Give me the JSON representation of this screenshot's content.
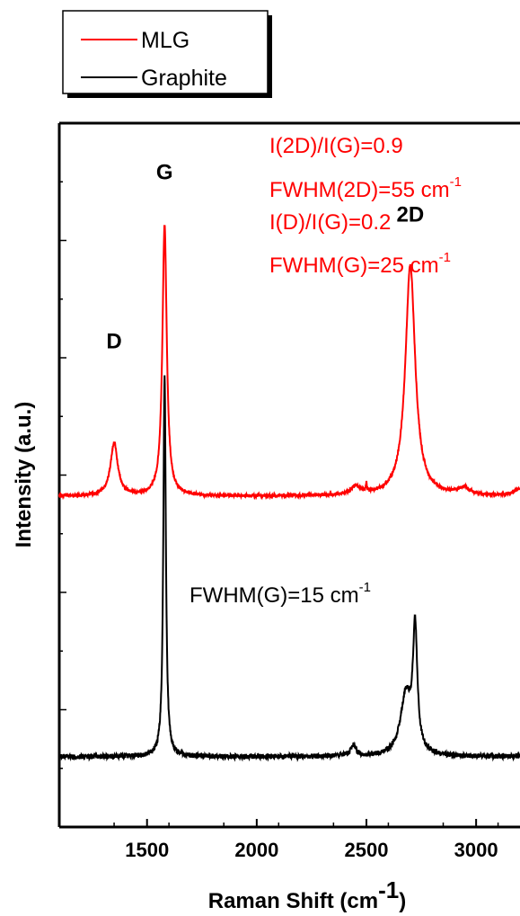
{
  "chart_data": {
    "type": "line",
    "xlabel": "Raman Shift (cm",
    "xlabel_sup": "-1",
    "xlabel_close": ")",
    "ylabel": "Intensity (a.u.)",
    "xlim": [
      1100,
      3200
    ],
    "ylim": [
      0,
      1
    ],
    "x_ticks": [
      1500,
      2000,
      2500,
      3000
    ],
    "x_tick_labels": [
      "1500",
      "2000",
      "2500",
      "3000"
    ],
    "legend_position": "top-left-outside",
    "series": [
      {
        "name": "MLG",
        "color": "#ff0000",
        "baseline": 0.47,
        "peaks": [
          {
            "center": 1350,
            "height": 0.075,
            "width": 20
          },
          {
            "center": 1580,
            "height": 0.384,
            "width": 12
          },
          {
            "center": 2450,
            "height": 0.012,
            "width": 25
          },
          {
            "center": 2500,
            "height": 0.012,
            "width": 3
          },
          {
            "center": 2700,
            "height": 0.328,
            "width": 27
          },
          {
            "center": 2945,
            "height": 0.01,
            "width": 30
          },
          {
            "center": 3200,
            "height": 0.01,
            "width": 30
          }
        ]
      },
      {
        "name": "Graphite",
        "color": "#000000",
        "baseline": 0.1,
        "peaks": [
          {
            "center": 1580,
            "height": 0.54,
            "width": 7
          },
          {
            "center": 2440,
            "height": 0.015,
            "width": 15
          },
          {
            "center": 2680,
            "height": 0.085,
            "width": 30
          },
          {
            "center": 2722,
            "height": 0.17,
            "width": 12
          }
        ]
      }
    ],
    "peak_labels": [
      {
        "text": "D",
        "x": 1350,
        "y": 0.68
      },
      {
        "text": "G",
        "x": 1580,
        "y": 0.92
      },
      {
        "text": "2D",
        "x": 2700,
        "y": 0.86
      }
    ],
    "annotations_red": [
      {
        "text": "I(2D)/I(G)=0.9",
        "sup": ""
      },
      {
        "text": "FWHM(2D)=55 cm",
        "sup": "-1"
      },
      {
        "text": "I(D)/I(G)=0.2",
        "sup": ""
      },
      {
        "text": "FWHM(G)=25 cm",
        "sup": "-1"
      }
    ],
    "annotation_black": {
      "text": "FWHM(G)=15 cm",
      "sup": "-1"
    }
  }
}
